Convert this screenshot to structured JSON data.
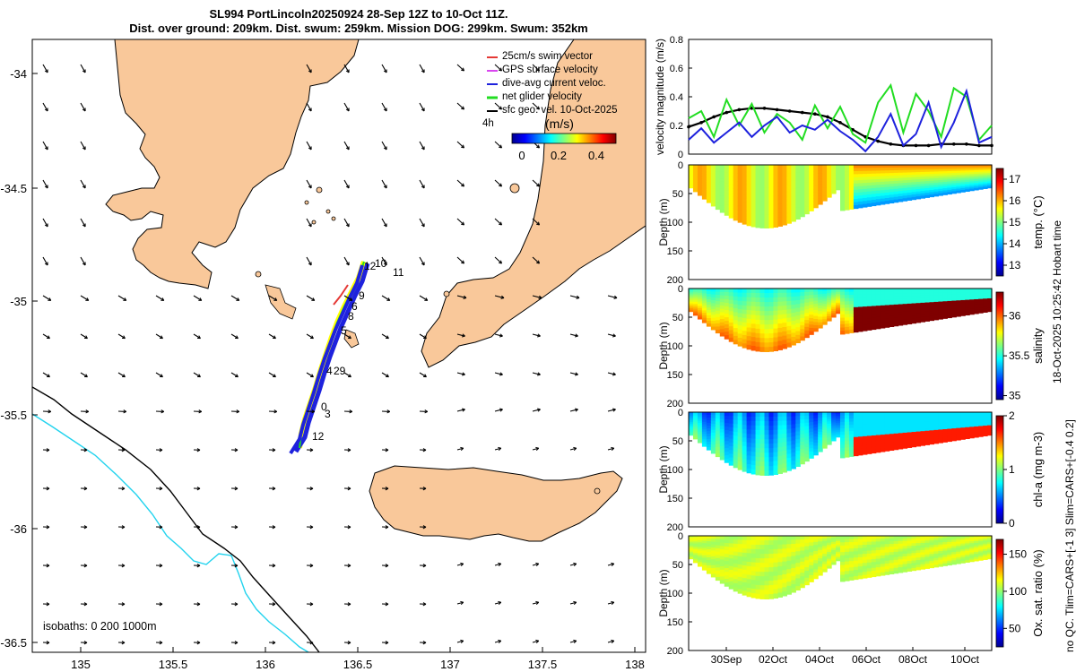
{
  "header": {
    "title_line1": "SL994 PortLincoln20250924 28-Sep 12Z to 10-Oct 11Z.",
    "title_line2": "Dist. over ground: 209km. Dist. swum: 259km. Mission DOG: 299km. Swum: 352km"
  },
  "colors": {
    "land": "#F9C89A",
    "shelf_isobath": "#000000",
    "deep_isobath": "#22D3EE",
    "swim_vector": "#E53935",
    "gps_velocity": "#D946EF",
    "dive_avg_current": "#1E22DD",
    "net_glider": "#22DD22",
    "sfc_geos": "#000000"
  },
  "map": {
    "legend": [
      {
        "label": "25cm/s swim vector",
        "color": "#E53935"
      },
      {
        "label": "GPS surface velocity",
        "color": "#D946EF"
      },
      {
        "label": "dive-avg current veloc.",
        "color": "#1E22DD"
      },
      {
        "label": "net glider velocity",
        "color": "#22DD22"
      },
      {
        "label": "sfc geo. vel. 10-Oct-2025",
        "color": "#000000"
      }
    ],
    "interval_label": "4h",
    "colorbar_title": "(m/s)",
    "colorbar_ticks": [
      "0",
      "0.2",
      "0.4"
    ],
    "isobath_note": "isobaths: 0   200  1000m",
    "x_ticks": [
      "135",
      "135.5",
      "136",
      "136.5",
      "137",
      "137.5",
      "138"
    ],
    "y_ticks": [
      "-34",
      "-34.5",
      "-35",
      "-35.5",
      "-36",
      "-36.5"
    ],
    "day_markers": [
      "12",
      "10",
      "11",
      "9",
      "6",
      "8",
      "5",
      "4",
      "29",
      "0",
      "3",
      "12"
    ]
  },
  "chart_data": [
    {
      "type": "line",
      "title": "",
      "xlabel": "",
      "ylabel": "velocity magnitude (m/s)",
      "ylim": [
        0,
        0.8
      ],
      "y_ticks": [
        "0",
        "0.2",
        "0.4",
        "0.6",
        "0.8"
      ],
      "x": [
        0,
        0.5,
        1,
        1.5,
        2,
        2.5,
        3,
        3.5,
        4,
        4.5,
        5,
        5.5,
        6,
        6.5,
        7,
        7.5,
        8,
        8.5,
        9,
        9.5,
        10,
        10.5,
        11,
        11.5,
        12
      ],
      "series": [
        {
          "name": "sfc geo. vel.",
          "color": "#000000",
          "values": [
            0.19,
            0.22,
            0.26,
            0.29,
            0.31,
            0.32,
            0.32,
            0.31,
            0.3,
            0.29,
            0.28,
            0.26,
            0.22,
            0.17,
            0.12,
            0.09,
            0.07,
            0.06,
            0.06,
            0.06,
            0.07,
            0.07,
            0.07,
            0.06,
            0.06
          ]
        },
        {
          "name": "net glider velocity",
          "color": "#22DD22",
          "values": [
            0.25,
            0.3,
            0.12,
            0.38,
            0.2,
            0.35,
            0.15,
            0.28,
            0.22,
            0.1,
            0.34,
            0.18,
            0.33,
            0.14,
            0.08,
            0.36,
            0.48,
            0.15,
            0.42,
            0.3,
            0.12,
            0.46,
            0.4,
            0.1,
            0.2
          ]
        },
        {
          "name": "dive-avg current veloc.",
          "color": "#1E22DD",
          "values": [
            0.1,
            0.18,
            0.08,
            0.15,
            0.22,
            0.12,
            0.2,
            0.26,
            0.15,
            0.2,
            0.17,
            0.24,
            0.16,
            0.1,
            0.02,
            0.12,
            0.28,
            0.06,
            0.14,
            0.36,
            0.05,
            0.22,
            0.44,
            0.08,
            0.12
          ]
        }
      ]
    },
    {
      "type": "heatmap",
      "xlabel": "",
      "ylabel": "Depth (m)",
      "y_ticks": [
        "0",
        "50",
        "100",
        "150",
        "200"
      ],
      "colorbar_label": "temp. (°C)",
      "colorbar_ticks": [
        "13",
        "14",
        "15",
        "16",
        "17"
      ],
      "clim": [
        12.5,
        17.5
      ],
      "x_ticks": [],
      "surface_value": 16.2,
      "bottom_value": 15.2
    },
    {
      "type": "heatmap",
      "xlabel": "",
      "ylabel": "Depth (m)",
      "y_ticks": [
        "0",
        "50",
        "100",
        "150",
        "200"
      ],
      "colorbar_label": "salinity",
      "colorbar_ticks": [
        "35",
        "35.5",
        "36"
      ],
      "clim": [
        34.95,
        36.3
      ],
      "x_ticks": [],
      "surface_value": 35.6,
      "bottom_value": 36.0
    },
    {
      "type": "heatmap",
      "xlabel": "",
      "ylabel": "Depth (m)",
      "y_ticks": [
        "0",
        "50",
        "100",
        "150",
        "200"
      ],
      "colorbar_label": "chl-a (mg m-3)",
      "colorbar_ticks": [
        "0",
        "1",
        "2"
      ],
      "clim": [
        0,
        2
      ],
      "x_ticks": [],
      "surface_value": 0.5,
      "bottom_value": 0.9
    },
    {
      "type": "heatmap",
      "xlabel": "",
      "ylabel": "Depth (m)",
      "y_ticks": [
        "0",
        "50",
        "100",
        "150",
        "200"
      ],
      "colorbar_label": "Ox. sat. ratio (%)",
      "colorbar_ticks": [
        "50",
        "100",
        "150"
      ],
      "clim": [
        25,
        170
      ],
      "x_ticks": [
        "30Sep",
        "02Oct",
        "04Oct",
        "06Oct",
        "08Oct",
        "10Oct"
      ],
      "surface_value": 112,
      "bottom_value": 110
    }
  ],
  "side": {
    "hobart_time": "18-Oct-2025 10:25:42 Hobart time",
    "qc_note": "no QC. Tlim=CARS+[-1 3] Slim=CARS+[-0.4 0.2]"
  }
}
